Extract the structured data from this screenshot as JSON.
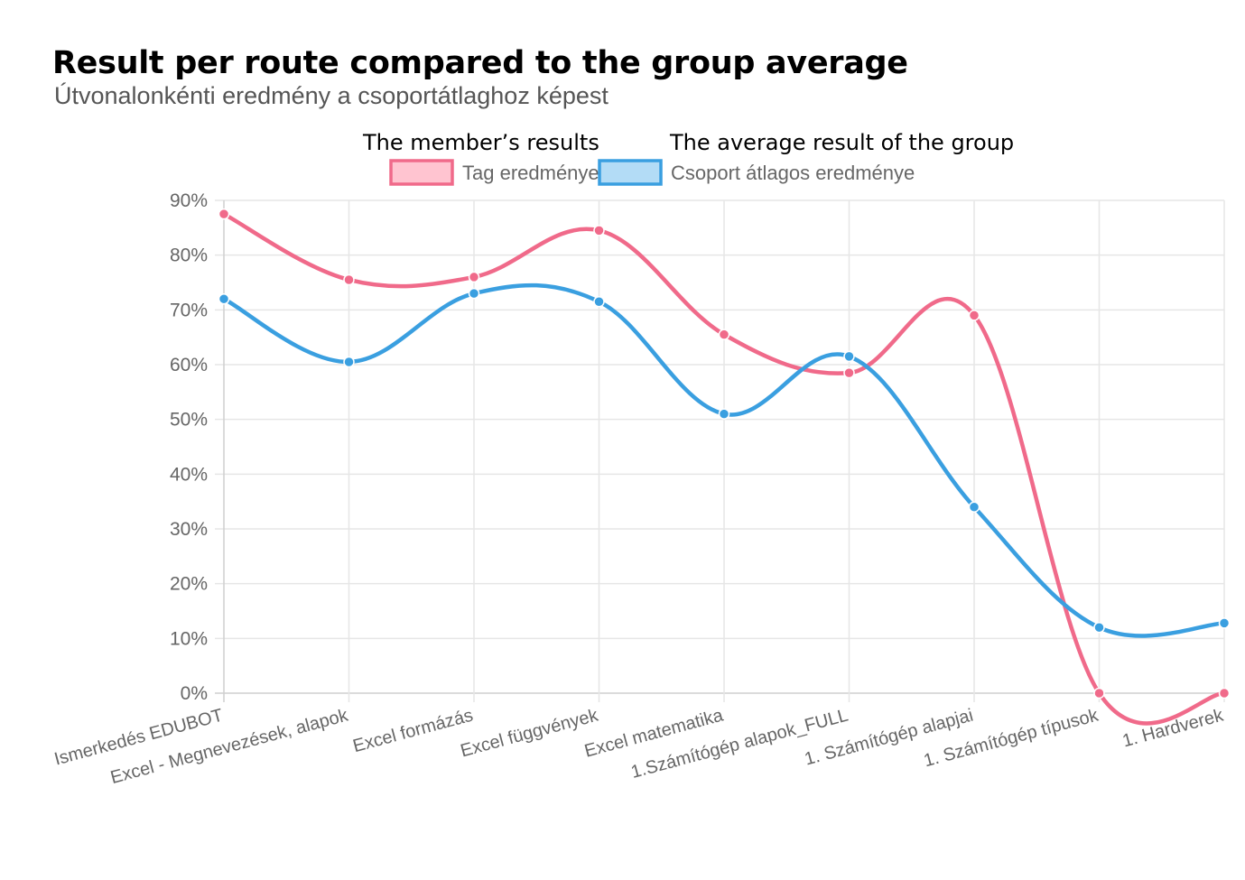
{
  "title": "Result per route compared to the group average",
  "subtitle": "Útvonalonkénti eredmény a csoportátlaghoz képest",
  "legend_captions": {
    "member": "The member’s results",
    "group": "The average result of the group"
  },
  "colors": {
    "member": "#f06a8a",
    "member_fill": "#ffc4d0",
    "group": "#3a9fe0",
    "group_fill": "#b3dcf6",
    "grid": "#e6e6e6"
  },
  "chart_data": {
    "type": "line",
    "categories": [
      "Ismerkedés EDUBOT",
      "Excel - Megnevezések, alapok",
      "Excel formázás",
      "Excel függvények",
      "Excel matematika",
      "1.Számítógép alapok_FULL",
      "1. Számítógép alapjai",
      "1. Számítógép típusok",
      "1. Hardverek"
    ],
    "series": [
      {
        "name": "Tag eredménye",
        "values": [
          87.5,
          75.5,
          76,
          84.5,
          65.5,
          58.5,
          69,
          0,
          0
        ]
      },
      {
        "name": "Csoport átlagos eredménye",
        "values": [
          72,
          60.5,
          73,
          71.5,
          51,
          61.5,
          34,
          12,
          12.8
        ]
      }
    ],
    "ylim": [
      0,
      90
    ],
    "yticks": [
      "0%",
      "10%",
      "20%",
      "30%",
      "40%",
      "50%",
      "60%",
      "70%",
      "80%",
      "90%"
    ],
    "grid": true,
    "legend": "top-center"
  }
}
